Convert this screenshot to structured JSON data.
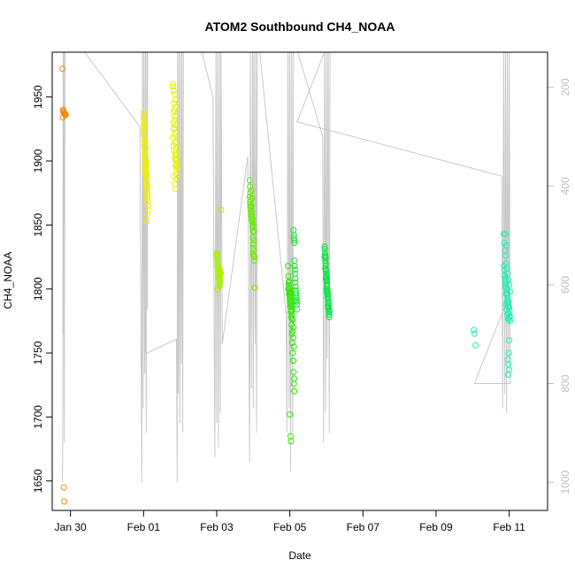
{
  "chart_data": {
    "type": "scatter",
    "title": "ATOM2 Southbound CH4_NOAA",
    "xlabel": "Date",
    "ylabel": "CH4_NOAA",
    "x_unit": "days from Jan 28",
    "xlim": [
      1.5,
      15.05
    ],
    "ylim": [
      1627,
      1985
    ],
    "y2lim": [
      1057,
      129
    ],
    "x_ticks": [
      {
        "value": 2.0,
        "label": "Jan 30"
      },
      {
        "value": 4.0,
        "label": "Feb 01"
      },
      {
        "value": 6.0,
        "label": "Feb 03"
      },
      {
        "value": 8.0,
        "label": "Feb 05"
      },
      {
        "value": 10.0,
        "label": "Feb 07"
      },
      {
        "value": 12.0,
        "label": "Feb 09"
      },
      {
        "value": 14.0,
        "label": "Feb 11"
      }
    ],
    "y_ticks": [
      {
        "value": 1650,
        "label": "1650"
      },
      {
        "value": 1700,
        "label": "1700"
      },
      {
        "value": 1750,
        "label": "1750"
      },
      {
        "value": 1800,
        "label": "1800"
      },
      {
        "value": 1850,
        "label": "1850"
      },
      {
        "value": 1900,
        "label": "1900"
      },
      {
        "value": 1950,
        "label": "1950"
      }
    ],
    "y2_ticks": [
      {
        "value": 200,
        "label": "200"
      },
      {
        "value": 400,
        "label": "400"
      },
      {
        "value": 600,
        "label": "600"
      },
      {
        "value": 800,
        "label": "800"
      },
      {
        "value": 1000,
        "label": "1000"
      }
    ],
    "colors": {
      "line": "#c8c8c8",
      "axis": "#000000",
      "axis2": "#bdbdbd"
    },
    "pressure_track": [
      [
        1.78,
        1000
      ],
      [
        1.79,
        850
      ],
      [
        1.8,
        100
      ],
      [
        1.81,
        700
      ],
      [
        1.82,
        120
      ],
      [
        1.83,
        920
      ],
      [
        1.85,
        80
      ],
      [
        2.4,
        130
      ],
      [
        3.9,
        280
      ],
      [
        3.95,
        1000
      ],
      [
        3.97,
        120
      ],
      [
        3.99,
        850
      ],
      [
        4.01,
        100
      ],
      [
        4.03,
        780
      ],
      [
        4.05,
        110
      ],
      [
        4.07,
        900
      ],
      [
        4.09,
        80
      ],
      [
        4.1,
        650
      ],
      [
        4.11,
        100
      ],
      [
        4.05,
        740
      ],
      [
        4.9,
        710
      ],
      [
        4.92,
        1000
      ],
      [
        4.93,
        120
      ],
      [
        4.95,
        820
      ],
      [
        4.97,
        90
      ],
      [
        4.99,
        880
      ],
      [
        5.01,
        100
      ],
      [
        5.03,
        760
      ],
      [
        5.05,
        120
      ],
      [
        5.07,
        900
      ],
      [
        5.09,
        80
      ],
      [
        5.6,
        130
      ],
      [
        5.9,
        220
      ],
      [
        5.95,
        950
      ],
      [
        5.98,
        110
      ],
      [
        6.0,
        880
      ],
      [
        6.03,
        100
      ],
      [
        6.05,
        930
      ],
      [
        6.08,
        120
      ],
      [
        6.1,
        860
      ],
      [
        6.12,
        120
      ],
      [
        6.15,
        720
      ],
      [
        6.85,
        340
      ],
      [
        6.9,
        960
      ],
      [
        6.92,
        110
      ],
      [
        6.95,
        810
      ],
      [
        6.98,
        90
      ],
      [
        7.0,
        850
      ],
      [
        7.02,
        100
      ],
      [
        7.05,
        720
      ],
      [
        7.07,
        110
      ],
      [
        7.09,
        900
      ],
      [
        7.11,
        80
      ],
      [
        7.9,
        660
      ],
      [
        7.92,
        900
      ],
      [
        7.95,
        110
      ],
      [
        7.98,
        850
      ],
      [
        8.0,
        100
      ],
      [
        8.02,
        980
      ],
      [
        8.05,
        120
      ],
      [
        8.08,
        900
      ],
      [
        8.1,
        100
      ],
      [
        8.9,
        300
      ],
      [
        8.92,
        920
      ],
      [
        8.95,
        100
      ],
      [
        8.98,
        860
      ],
      [
        9.0,
        110
      ],
      [
        9.02,
        750
      ],
      [
        9.05,
        90
      ],
      [
        9.08,
        900
      ],
      [
        9.1,
        100
      ],
      [
        8.2,
        270
      ],
      [
        13.8,
        380
      ],
      [
        13.82,
        850
      ],
      [
        13.85,
        120
      ],
      [
        13.88,
        820
      ],
      [
        13.9,
        100
      ],
      [
        13.93,
        860
      ],
      [
        13.95,
        130
      ],
      [
        13.98,
        780
      ],
      [
        14.0,
        110
      ],
      [
        14.03,
        800
      ],
      [
        13.05,
        800
      ],
      [
        13.9,
        640
      ]
    ],
    "series": [
      {
        "color": "#f08a00",
        "x": [
          1.78,
          1.8,
          1.82,
          1.85,
          1.87,
          1.79,
          1.83,
          1.81,
          1.86,
          1.8,
          1.84,
          1.82,
          1.83
        ],
        "y": [
          1972,
          1939,
          1938,
          1937,
          1936,
          1934,
          1937,
          1938,
          1936,
          1940,
          1937,
          1645,
          1634
        ]
      },
      {
        "color": "#f0f000",
        "x": [
          4.0,
          4.01,
          4.02,
          4.03,
          4.04,
          4.05,
          4.06,
          4.07,
          4.08,
          4.09,
          4.1,
          4.11,
          4.12,
          4.0,
          4.02,
          4.04,
          4.06,
          4.08,
          4.1,
          4.01,
          4.03,
          4.05,
          4.07,
          4.09,
          4.11,
          4.02,
          4.04,
          4.06,
          4.08,
          4.1,
          4.0,
          4.03,
          4.05,
          4.07,
          4.09,
          4.12,
          4.01,
          4.04,
          4.06,
          4.08,
          4.1,
          4.02,
          4.05,
          4.07,
          4.09,
          4.03,
          4.06,
          4.08
        ],
        "y": [
          1933,
          1928,
          1920,
          1915,
          1908,
          1902,
          1897,
          1893,
          1888,
          1882,
          1876,
          1870,
          1865,
          1925,
          1912,
          1905,
          1899,
          1890,
          1880,
          1935,
          1918,
          1910,
          1900,
          1886,
          1874,
          1930,
          1895,
          1890,
          1878,
          1868,
          1922,
          1906,
          1892,
          1884,
          1872,
          1862,
          1938,
          1913,
          1896,
          1883,
          1858,
          1927,
          1903,
          1891,
          1853,
          1916,
          1898,
          1880
        ]
      },
      {
        "color": "#e6f200",
        "x": [
          4.8,
          4.81,
          4.82,
          4.83,
          4.84,
          4.85,
          4.86,
          4.87,
          4.88,
          4.89,
          4.9,
          4.91,
          4.92,
          4.8,
          4.82,
          4.84,
          4.86,
          4.88,
          4.9,
          4.81,
          4.83,
          4.85,
          4.87,
          4.89,
          4.91,
          4.82,
          4.84,
          4.86,
          4.88,
          4.9,
          4.83,
          4.85,
          4.87,
          4.89,
          4.85,
          4.86,
          4.87,
          4.84,
          4.88
        ],
        "y": [
          1960,
          1958,
          1955,
          1945,
          1940,
          1935,
          1928,
          1922,
          1915,
          1910,
          1905,
          1900,
          1895,
          1918,
          1912,
          1908,
          1902,
          1896,
          1890,
          1930,
          1925,
          1920,
          1906,
          1898,
          1886,
          1938,
          1926,
          1914,
          1904,
          1893,
          1888,
          1882,
          1878,
          1897,
          1952,
          1948,
          1942,
          1932,
          1901
        ]
      },
      {
        "color": "#aaf000",
        "x": [
          6.0,
          6.01,
          6.02,
          6.03,
          6.04,
          6.05,
          6.06,
          6.07,
          6.08,
          6.09,
          6.1,
          6.0,
          6.02,
          6.04,
          6.06,
          6.08,
          6.1,
          6.01,
          6.03,
          6.05,
          6.07,
          6.09,
          6.11,
          6.02,
          6.04,
          6.06,
          6.08,
          6.12
        ],
        "y": [
          1828,
          1825,
          1822,
          1819,
          1816,
          1813,
          1810,
          1807,
          1805,
          1812,
          1815,
          1827,
          1818,
          1814,
          1808,
          1804,
          1811,
          1826,
          1820,
          1809,
          1803,
          1806,
          1813,
          1800,
          1817,
          1802,
          1808,
          1862
        ]
      },
      {
        "color": "#66ee00",
        "x": [
          6.9,
          6.91,
          6.92,
          6.93,
          6.94,
          6.95,
          6.96,
          6.97,
          6.98,
          6.99,
          7.0,
          7.01,
          7.02,
          7.03,
          6.9,
          6.92,
          6.94,
          6.96,
          6.98,
          7.0,
          7.02,
          6.91,
          6.93,
          6.95,
          6.97,
          6.99,
          7.01,
          7.03,
          6.92,
          6.94,
          6.96,
          6.98,
          7.0,
          7.04,
          6.95,
          6.97,
          6.99
        ],
        "y": [
          1885,
          1880,
          1875,
          1870,
          1865,
          1860,
          1856,
          1852,
          1848,
          1840,
          1835,
          1830,
          1826,
          1822,
          1872,
          1866,
          1862,
          1858,
          1855,
          1850,
          1845,
          1868,
          1863,
          1857,
          1853,
          1845,
          1838,
          1825,
          1864,
          1860,
          1854,
          1849,
          1832,
          1801,
          1877,
          1871,
          1827
        ]
      },
      {
        "color": "#2ee800",
        "x": [
          7.95,
          7.96,
          7.97,
          7.98,
          7.99,
          8.0,
          8.01,
          8.02,
          8.03,
          8.04,
          8.05,
          8.06,
          8.07,
          8.08,
          8.09,
          8.1,
          8.11,
          8.12,
          7.96,
          7.98,
          8.0,
          8.02,
          8.04,
          8.06,
          8.08,
          8.1,
          7.97,
          7.99,
          8.01,
          8.03,
          8.05,
          8.07,
          8.09,
          8.11,
          7.98,
          8.0,
          8.02,
          8.04,
          8.06,
          8.08,
          8.1,
          8.12,
          8.0,
          8.02,
          8.03
        ],
        "y": [
          1818,
          1810,
          1805,
          1800,
          1797,
          1794,
          1790,
          1786,
          1782,
          1778,
          1772,
          1765,
          1758,
          1750,
          1744,
          1735,
          1726,
          1720,
          1800,
          1796,
          1792,
          1788,
          1784,
          1780,
          1776,
          1770,
          1803,
          1798,
          1795,
          1789,
          1783,
          1777,
          1762,
          1755,
          1806,
          1801,
          1797,
          1791,
          1787,
          1767,
          1744,
          1730,
          1702,
          1685,
          1681
        ]
      },
      {
        "color": "#16e82a",
        "x": [
          8.1,
          8.11,
          8.12,
          8.13,
          8.14,
          8.15,
          8.16,
          8.17,
          8.18,
          8.19,
          8.2,
          8.11,
          8.13,
          8.15,
          8.17,
          8.19,
          8.12,
          8.14,
          8.16,
          8.18
        ],
        "y": [
          1846,
          1842,
          1838,
          1822,
          1815,
          1808,
          1802,
          1797,
          1793,
          1788,
          1784,
          1840,
          1818,
          1805,
          1795,
          1790,
          1836,
          1812,
          1799,
          1791
        ]
      },
      {
        "color": "#00e63c",
        "x": [
          8.95,
          8.96,
          8.97,
          8.98,
          8.99,
          9.0,
          9.01,
          9.02,
          9.03,
          9.04,
          9.05,
          9.06,
          9.07,
          9.08,
          8.95,
          8.97,
          8.99,
          9.01,
          9.03,
          9.05,
          9.07,
          8.96,
          8.98,
          9.0,
          9.02,
          9.04,
          9.06,
          9.08,
          8.97,
          8.99,
          9.01,
          9.03,
          9.05,
          9.07,
          8.98,
          9.0,
          9.02,
          9.04
        ],
        "y": [
          1833,
          1828,
          1822,
          1818,
          1814,
          1810,
          1806,
          1802,
          1798,
          1795,
          1790,
          1786,
          1782,
          1778,
          1825,
          1816,
          1808,
          1800,
          1793,
          1785,
          1780,
          1831,
          1820,
          1812,
          1804,
          1796,
          1789,
          1783,
          1826,
          1815,
          1807,
          1799,
          1792,
          1784,
          1824,
          1809,
          1797,
          1787
        ]
      },
      {
        "color": "#1ef0b4",
        "x": [
          13.03,
          13.05,
          13.08,
          13.85,
          13.87,
          13.89,
          13.9,
          13.92,
          13.94,
          13.96,
          13.98,
          14.0,
          14.02,
          13.86,
          13.88,
          13.9,
          13.92,
          13.94,
          13.96,
          13.98,
          14.0,
          13.87,
          13.89,
          13.91,
          13.93,
          13.95,
          13.97,
          13.99,
          14.01,
          13.88,
          13.9,
          13.92,
          13.94,
          13.96,
          13.98,
          13.91,
          13.93,
          13.95,
          13.97,
          13.99,
          14.01,
          14.03,
          13.96,
          13.98,
          14.0,
          13.97,
          13.99,
          14.0,
          14.02,
          13.9,
          13.92
        ],
        "y": [
          1768,
          1765,
          1756,
          1843,
          1836,
          1830,
          1826,
          1820,
          1816,
          1812,
          1807,
          1803,
          1798,
          1818,
          1810,
          1806,
          1801,
          1797,
          1793,
          1789,
          1785,
          1815,
          1808,
          1804,
          1799,
          1795,
          1791,
          1787,
          1783,
          1811,
          1802,
          1796,
          1790,
          1786,
          1781,
          1788,
          1784,
          1780,
          1777,
          1776,
          1778,
          1775,
          1745,
          1741,
          1737,
          1733,
          1750,
          1760,
          1779,
          1843,
          1834
        ]
      }
    ]
  }
}
